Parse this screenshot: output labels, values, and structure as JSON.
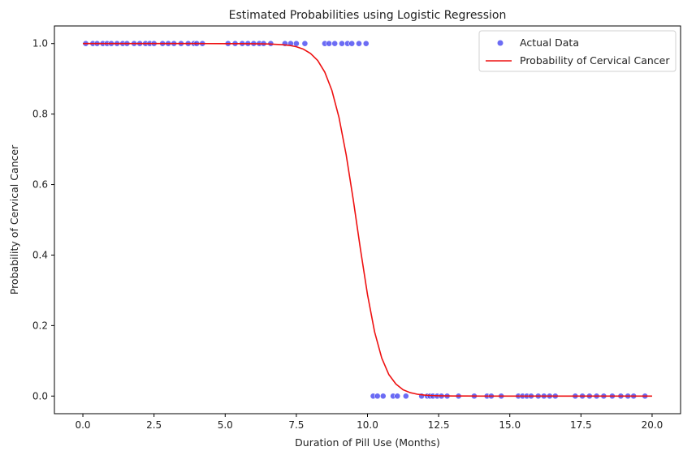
{
  "chart_data": {
    "type": "scatter",
    "title": "Estimated Probabilities using Logistic Regression",
    "xlabel": "Duration of Pill Use (Months)",
    "ylabel": "Probability of Cervical Cancer",
    "xlim": [
      -1.0,
      21.0
    ],
    "ylim": [
      -0.05,
      1.05
    ],
    "x_ticks": [
      0.0,
      2.5,
      5.0,
      7.5,
      10.0,
      12.5,
      15.0,
      17.5,
      20.0
    ],
    "x_tick_labels": [
      "0.0",
      "2.5",
      "5.0",
      "7.5",
      "10.0",
      "12.5",
      "15.0",
      "17.5",
      "20.0"
    ],
    "y_ticks": [
      0.0,
      0.2,
      0.4,
      0.6,
      0.8,
      1.0
    ],
    "y_tick_labels": [
      "0.0",
      "0.2",
      "0.4",
      "0.6",
      "0.8",
      "1.0"
    ],
    "grid": false,
    "legend_position": "top-right",
    "series": [
      {
        "name": "Actual Data",
        "kind": "scatter",
        "color": "#3b3bf0",
        "points": [
          [
            0.1,
            1
          ],
          [
            0.35,
            1
          ],
          [
            0.5,
            1
          ],
          [
            0.7,
            1
          ],
          [
            0.85,
            1
          ],
          [
            1.0,
            1
          ],
          [
            1.2,
            1
          ],
          [
            1.4,
            1
          ],
          [
            1.55,
            1
          ],
          [
            1.8,
            1
          ],
          [
            2.0,
            1
          ],
          [
            2.2,
            1
          ],
          [
            2.35,
            1
          ],
          [
            2.5,
            1
          ],
          [
            2.8,
            1
          ],
          [
            3.0,
            1
          ],
          [
            3.2,
            1
          ],
          [
            3.45,
            1
          ],
          [
            3.7,
            1
          ],
          [
            3.9,
            1
          ],
          [
            4.0,
            1
          ],
          [
            4.2,
            1
          ],
          [
            5.1,
            1
          ],
          [
            5.35,
            1
          ],
          [
            5.6,
            1
          ],
          [
            5.8,
            1
          ],
          [
            6.0,
            1
          ],
          [
            6.2,
            1
          ],
          [
            6.35,
            1
          ],
          [
            6.6,
            1
          ],
          [
            7.1,
            1
          ],
          [
            7.3,
            1
          ],
          [
            7.5,
            1
          ],
          [
            7.8,
            1
          ],
          [
            8.5,
            1
          ],
          [
            8.65,
            1
          ],
          [
            8.85,
            1
          ],
          [
            9.1,
            1
          ],
          [
            9.3,
            1
          ],
          [
            9.45,
            1
          ],
          [
            9.7,
            1
          ],
          [
            9.95,
            1
          ],
          [
            10.2,
            0
          ],
          [
            10.35,
            0
          ],
          [
            10.55,
            0
          ],
          [
            10.9,
            0
          ],
          [
            11.05,
            0
          ],
          [
            11.35,
            0
          ],
          [
            11.9,
            0
          ],
          [
            12.1,
            0
          ],
          [
            12.2,
            0
          ],
          [
            12.3,
            0
          ],
          [
            12.45,
            0
          ],
          [
            12.6,
            0
          ],
          [
            12.8,
            0
          ],
          [
            13.2,
            0
          ],
          [
            13.75,
            0
          ],
          [
            14.2,
            0
          ],
          [
            14.35,
            0
          ],
          [
            14.7,
            0
          ],
          [
            15.3,
            0
          ],
          [
            15.45,
            0
          ],
          [
            15.6,
            0
          ],
          [
            15.75,
            0
          ],
          [
            16.0,
            0
          ],
          [
            16.2,
            0
          ],
          [
            16.4,
            0
          ],
          [
            16.6,
            0
          ],
          [
            17.3,
            0
          ],
          [
            17.55,
            0
          ],
          [
            17.8,
            0
          ],
          [
            18.05,
            0
          ],
          [
            18.3,
            0
          ],
          [
            18.6,
            0
          ],
          [
            18.9,
            0
          ],
          [
            19.15,
            0
          ],
          [
            19.35,
            0
          ],
          [
            19.75,
            0
          ]
        ]
      },
      {
        "name": "Probability of Cervical Cancer",
        "kind": "line",
        "color": "#ee1111",
        "x": [
          0.0,
          1.0,
          2.0,
          3.0,
          4.0,
          5.0,
          5.5,
          6.0,
          6.5,
          7.0,
          7.25,
          7.5,
          7.75,
          8.0,
          8.25,
          8.5,
          8.75,
          9.0,
          9.25,
          9.5,
          9.75,
          10.0,
          10.25,
          10.5,
          10.75,
          11.0,
          11.25,
          11.5,
          11.75,
          12.0,
          12.25,
          12.5,
          13.0,
          13.5,
          14.0,
          14.5,
          15.0,
          16.0,
          17.0,
          18.0,
          19.0,
          20.0
        ],
        "y": [
          1.0,
          1.0,
          1.0,
          1.0,
          1.0,
          0.9999,
          0.9998,
          0.9996,
          0.999,
          0.997,
          0.995,
          0.991,
          0.984,
          0.972,
          0.952,
          0.919,
          0.867,
          0.79,
          0.685,
          0.557,
          0.418,
          0.288,
          0.182,
          0.108,
          0.061,
          0.034,
          0.018,
          0.0097,
          0.0052,
          0.0028,
          0.0015,
          0.0008,
          0.0002,
          0.0001,
          0.0,
          0.0,
          0.0,
          0.0,
          0.0,
          0.0,
          0.0,
          0.0
        ]
      }
    ]
  }
}
